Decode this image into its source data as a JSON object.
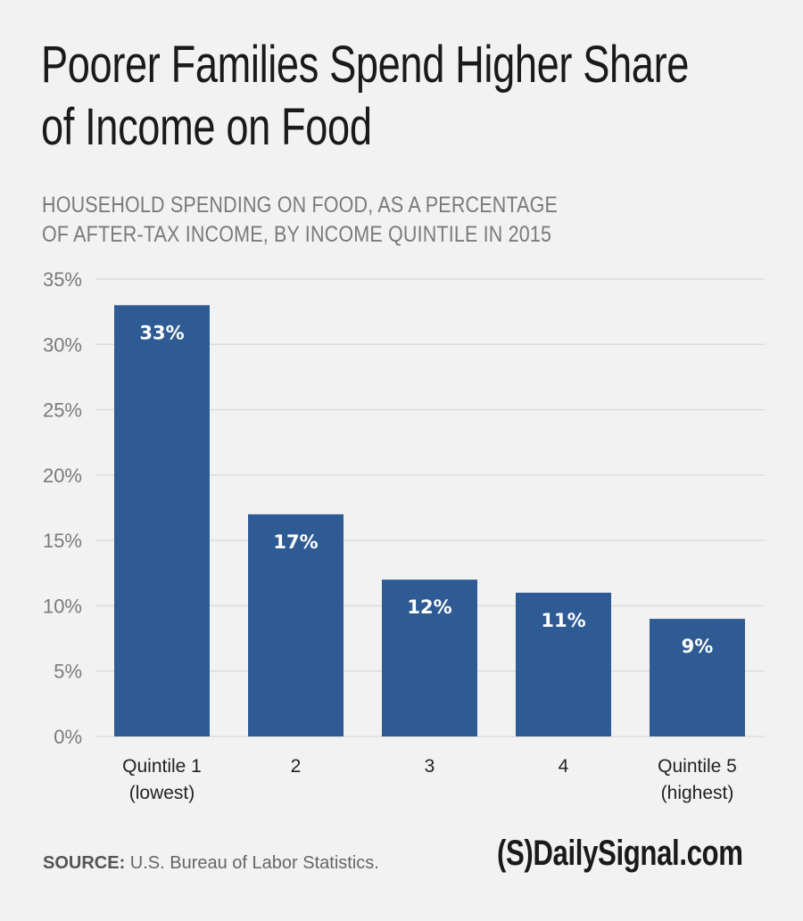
{
  "chart_data": {
    "type": "bar",
    "title": "Poorer Families Spend Higher Share of Income on Food",
    "title_lines": [
      "Poorer Families Spend Higher Share",
      "of Income on Food"
    ],
    "subtitle": "HOUSEHOLD SPENDING ON FOOD, AS A PERCENTAGE OF AFTER-TAX INCOME, BY INCOME QUINTILE IN 2015",
    "subtitle_lines": [
      "HOUSEHOLD SPENDING ON FOOD, AS A PERCENTAGE",
      "OF AFTER-TAX INCOME, BY INCOME QUINTILE IN 2015"
    ],
    "categories": [
      "Quintile 1 (lowest)",
      "2",
      "3",
      "4",
      "Quintile 5 (highest)"
    ],
    "category_lines": [
      [
        "Quintile 1",
        "(lowest)"
      ],
      [
        "2"
      ],
      [
        "3"
      ],
      [
        "4"
      ],
      [
        "Quintile 5",
        "(highest)"
      ]
    ],
    "values": [
      33,
      17,
      12,
      11,
      9
    ],
    "data_labels": [
      "33%",
      "17%",
      "12%",
      "11%",
      "9%"
    ],
    "xlabel": "",
    "ylabel": "",
    "ylim": [
      0,
      35
    ],
    "yticks": [
      0,
      5,
      10,
      15,
      20,
      25,
      30,
      35
    ],
    "ytick_labels": [
      "0%",
      "5%",
      "10%",
      "15%",
      "20%",
      "25%",
      "30%",
      "35%"
    ],
    "grid": true,
    "legend": "none",
    "bar_color": "#2f5b94"
  },
  "footer": {
    "source_label": "SOURCE:",
    "source_text": " U.S. Bureau of Labor Statistics.",
    "logo_text": "(S)DailySignal.com"
  }
}
